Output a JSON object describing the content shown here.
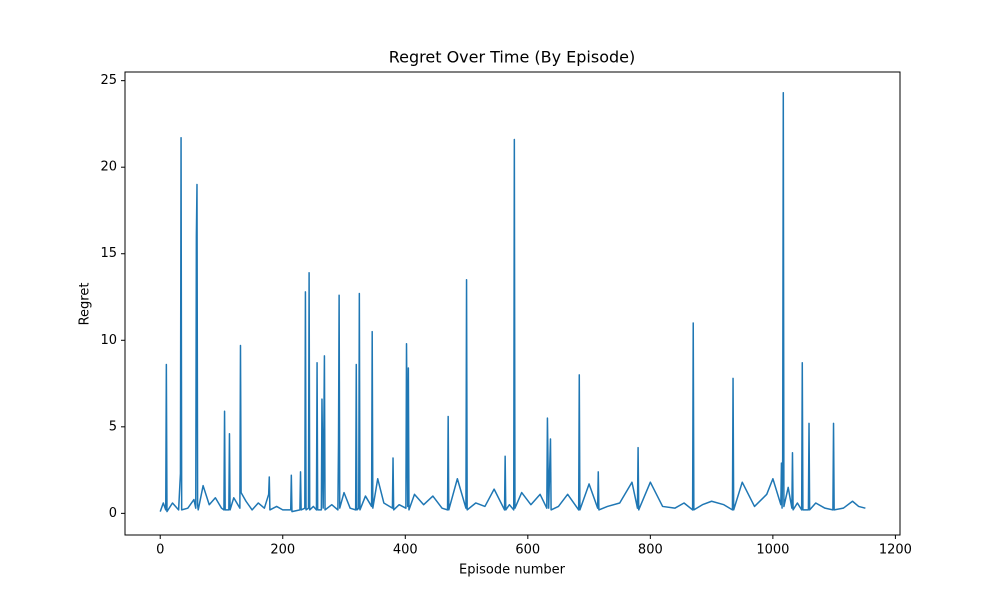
{
  "chart_data": {
    "type": "line",
    "title": "Regret Over Time (By Episode)",
    "xlabel": "Episode number",
    "ylabel": "Regret",
    "x": [
      0,
      5,
      9,
      10,
      11,
      20,
      30,
      33,
      34,
      35,
      45,
      55,
      58,
      59,
      60,
      61,
      62,
      70,
      80,
      90,
      100,
      104,
      105,
      106,
      112,
      113,
      114,
      120,
      130,
      131,
      132,
      140,
      150,
      160,
      170,
      177,
      178,
      179,
      190,
      200,
      213,
      214,
      215,
      228,
      229,
      230,
      236,
      237,
      238,
      242,
      243,
      244,
      250,
      255,
      256,
      257,
      263,
      264,
      266,
      268,
      269,
      280,
      290,
      291,
      292,
      293,
      300,
      310,
      319,
      320,
      321,
      324,
      325,
      326,
      335,
      345,
      346,
      347,
      355,
      365,
      379,
      380,
      381,
      390,
      401,
      402,
      404,
      405,
      406,
      415,
      430,
      445,
      460,
      469,
      470,
      471,
      485,
      499,
      500,
      501,
      515,
      530,
      545,
      562,
      563,
      564,
      570,
      577,
      578,
      579,
      590,
      605,
      620,
      631,
      632,
      634,
      637,
      638,
      650,
      665,
      683,
      684,
      685,
      700,
      714,
      715,
      716,
      730,
      750,
      770,
      779,
      780,
      781,
      800,
      820,
      840,
      855,
      869,
      870,
      871,
      885,
      900,
      920,
      934,
      935,
      936,
      950,
      970,
      990,
      1000,
      1013,
      1014,
      1015,
      1016,
      1017,
      1018,
      1025,
      1031,
      1032,
      1033,
      1040,
      1047,
      1048,
      1049,
      1058,
      1059,
      1060,
      1070,
      1085,
      1098,
      1099,
      1100,
      1115,
      1130,
      1140,
      1151
    ],
    "series": [
      {
        "name": "Regret",
        "color": "#1f77b4",
        "values": [
          0.1,
          0.6,
          0.2,
          8.6,
          0.1,
          0.6,
          0.2,
          2.3,
          21.7,
          0.2,
          0.3,
          0.8,
          0.3,
          16,
          19,
          0.5,
          0.2,
          1.6,
          0.5,
          0.9,
          0.3,
          0.2,
          5.9,
          0.2,
          0.2,
          4.6,
          0.2,
          0.9,
          0.3,
          9.7,
          1.2,
          0.7,
          0.2,
          0.6,
          0.3,
          1.1,
          2.1,
          0.2,
          0.4,
          0.2,
          0.2,
          2.2,
          0.1,
          0.2,
          2.4,
          0.2,
          0.3,
          12.8,
          0.2,
          0.3,
          13.9,
          0.2,
          0.4,
          0.2,
          8.7,
          0.2,
          0.2,
          6.6,
          0.3,
          9.1,
          0.2,
          0.5,
          0.2,
          4.1,
          12.6,
          0.3,
          1.2,
          0.3,
          0.2,
          8.6,
          0.2,
          0.3,
          12.7,
          0.2,
          1.0,
          0.4,
          10.5,
          0.3,
          2.0,
          0.6,
          0.3,
          3.2,
          0.2,
          0.5,
          0.3,
          9.8,
          0.4,
          8.4,
          0.2,
          1.1,
          0.5,
          1.0,
          0.3,
          0.2,
          5.6,
          0.2,
          2.0,
          0.3,
          13.5,
          0.2,
          0.6,
          0.4,
          1.4,
          0.2,
          3.3,
          0.2,
          0.5,
          0.2,
          21.6,
          0.3,
          1.2,
          0.5,
          1.1,
          0.3,
          5.5,
          0.3,
          4.3,
          0.2,
          0.4,
          1.1,
          0.2,
          8.0,
          0.2,
          1.7,
          0.3,
          2.4,
          0.2,
          0.4,
          0.6,
          1.8,
          0.3,
          3.8,
          0.2,
          1.8,
          0.4,
          0.3,
          0.6,
          0.2,
          11.0,
          0.2,
          0.5,
          0.7,
          0.5,
          0.2,
          7.8,
          0.2,
          1.8,
          0.4,
          1.1,
          2.0,
          0.5,
          2.9,
          0.3,
          3.2,
          24.3,
          0.4,
          1.5,
          0.3,
          3.5,
          0.2,
          0.6,
          0.2,
          8.7,
          0.2,
          0.2,
          5.2,
          0.2,
          0.6,
          0.3,
          0.2,
          5.2,
          0.2,
          0.3,
          0.7,
          0.4,
          0.3
        ]
      }
    ],
    "xlim": [
      -57.5,
      1207.5
    ],
    "xticks": [
      0,
      200,
      400,
      600,
      800,
      1000,
      1200
    ],
    "ylim": [
      -1.25,
      25.5
    ],
    "yticks": [
      0,
      5,
      10,
      15,
      20,
      25
    ],
    "grid": false
  }
}
